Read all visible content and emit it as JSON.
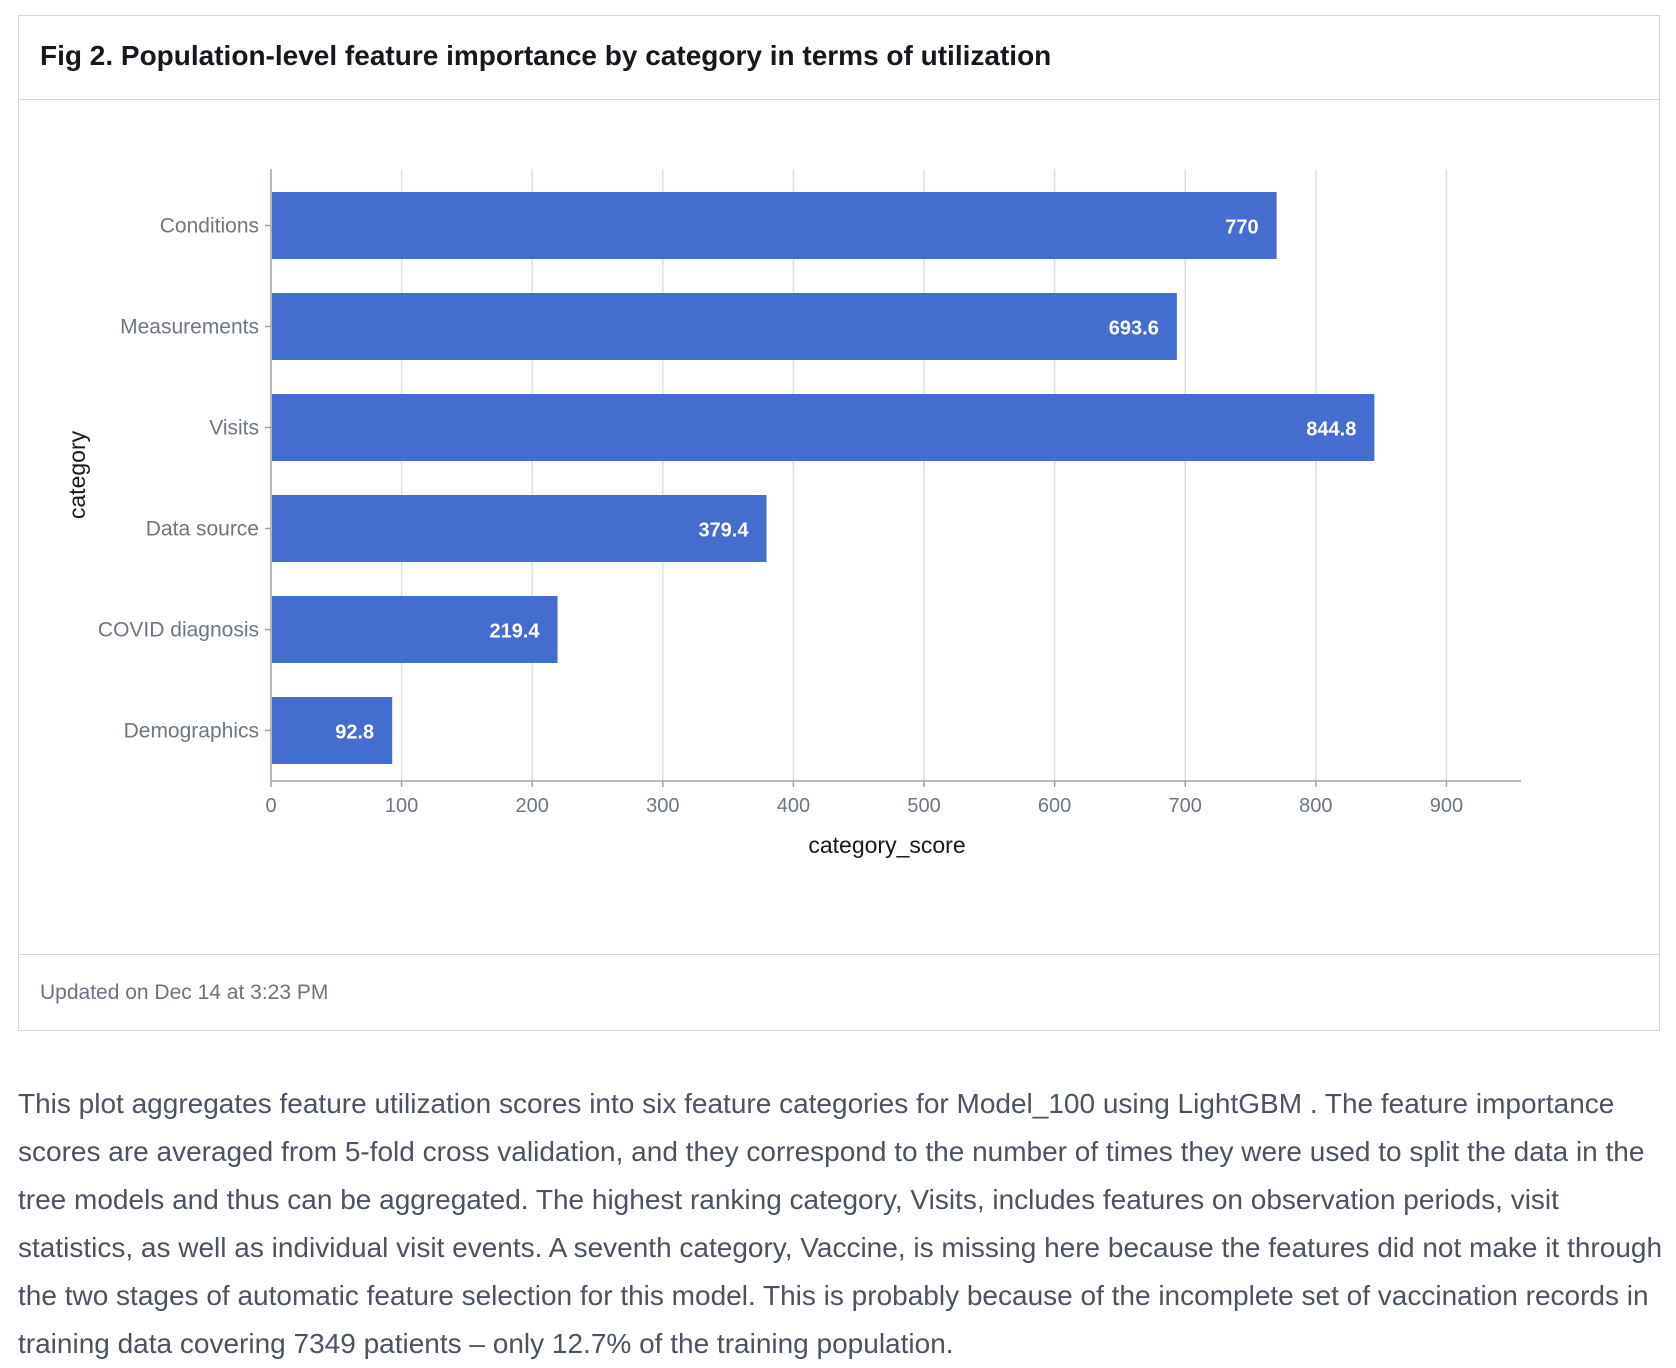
{
  "figure": {
    "title": "Fig 2. Population-level feature importance by category in terms of utilization",
    "updated": "Updated on Dec 14 at 3:23 PM"
  },
  "caption": "This plot aggregates feature utilization scores into six feature categories for Model_100 using LightGBM . The feature importance scores are averaged from 5-fold cross validation, and they correspond to the number of times they were used to split the data in the tree models and thus can be aggregated. The highest ranking category, Visits, includes features on observation periods, visit statistics, as well as individual visit events. A seventh category, Vaccine, is missing here because the features did not make it through the two stages of automatic feature selection for this model. This is probably because of the incomplete set of vaccination records in training data covering 7349 patients – only 12.7% of the training population.",
  "chart_data": {
    "type": "bar",
    "orientation": "horizontal",
    "categories": [
      "Conditions",
      "Measurements",
      "Visits",
      "Data source",
      "COVID diagnosis",
      "Demographics"
    ],
    "values": [
      770,
      693.6,
      844.8,
      379.4,
      219.4,
      92.8
    ],
    "value_labels": [
      "770",
      "693.6",
      "844.8",
      "379.4",
      "219.4",
      "92.8"
    ],
    "xlabel": "category_score",
    "ylabel": "category",
    "xlim": [
      0,
      928
    ],
    "xticks": [
      0,
      100,
      200,
      300,
      400,
      500,
      600,
      700,
      800,
      900
    ],
    "grid": true,
    "bar_color": "#436ecf"
  }
}
